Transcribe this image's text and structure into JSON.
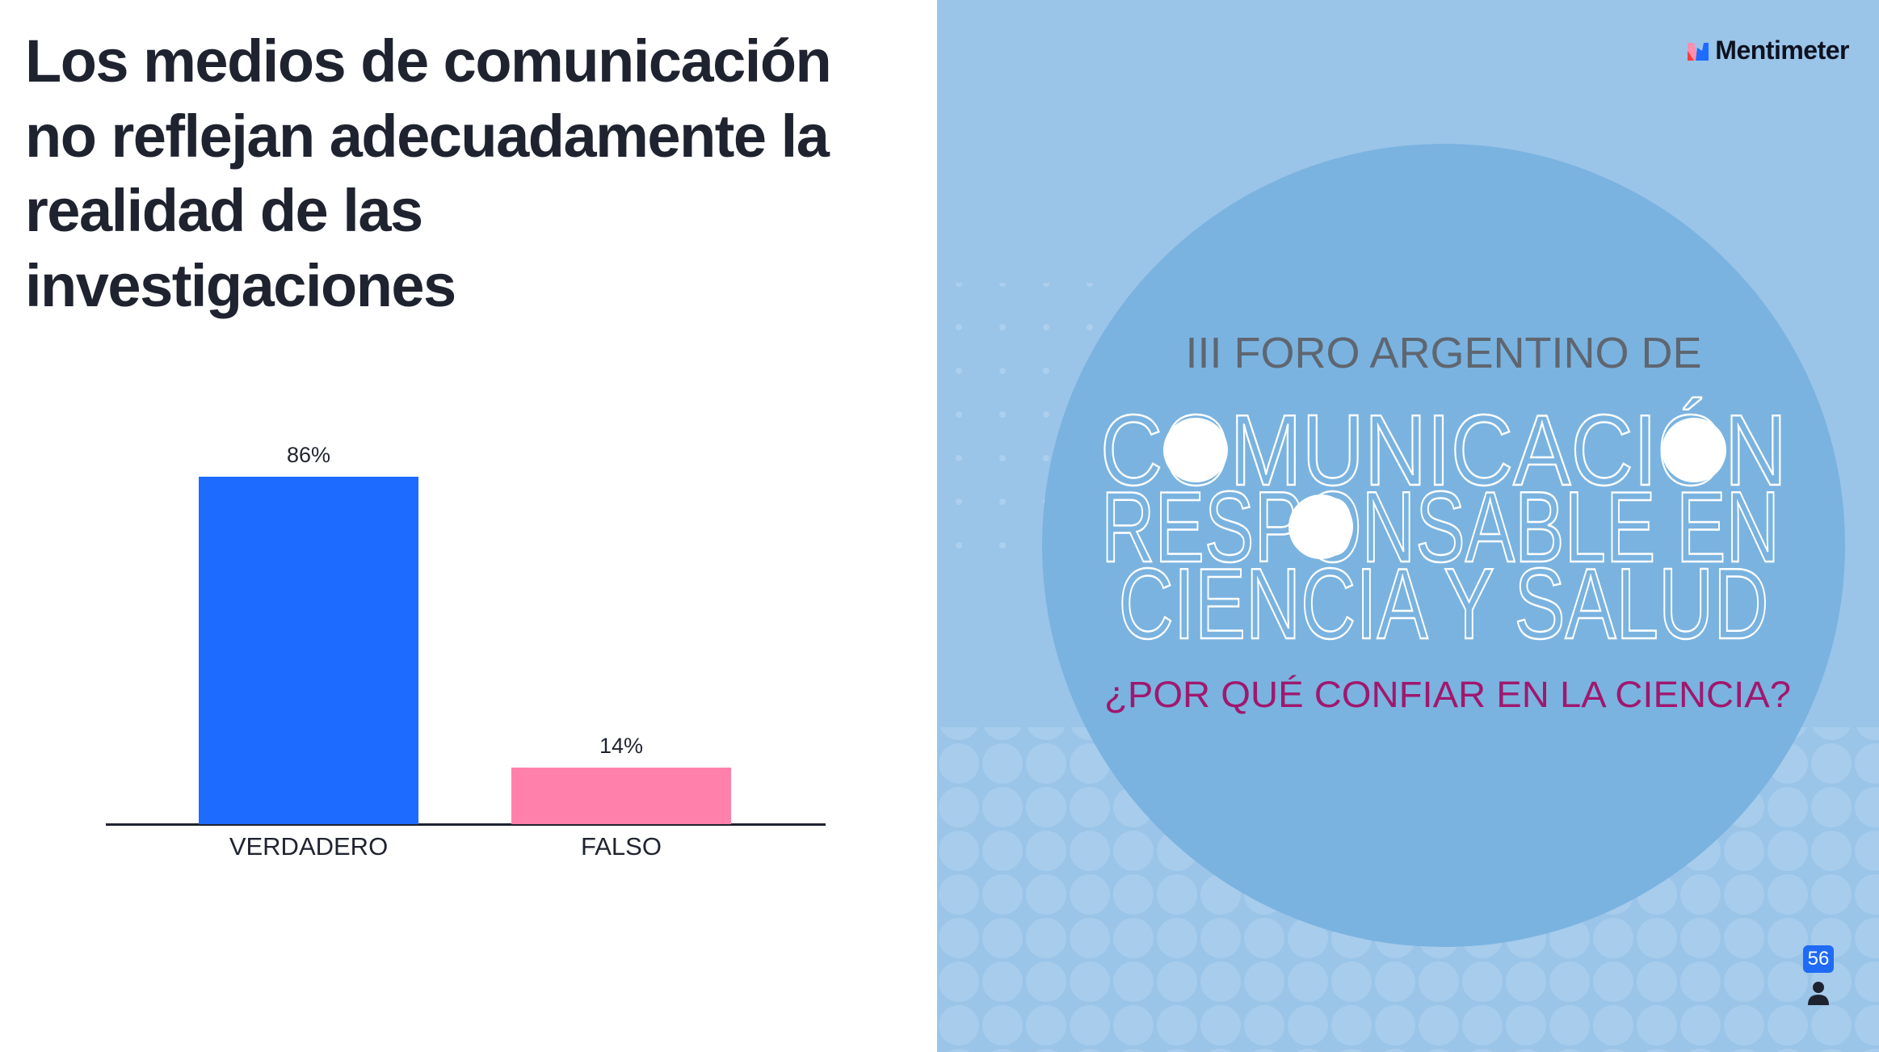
{
  "question": {
    "title": "Los medios de comunicación no reflejan adecuadamente la realidad de las investigaciones"
  },
  "chart_data": {
    "type": "bar",
    "categories": [
      "VERDADERO",
      "FALSO"
    ],
    "values": [
      86,
      14
    ],
    "value_labels": [
      "86%",
      "14%"
    ],
    "colors": [
      "#1e6bff",
      "#ff80ab"
    ],
    "ylim": [
      0,
      100
    ],
    "title": "",
    "xlabel": "",
    "ylabel": ""
  },
  "branding": {
    "logo_text": "Mentimeter"
  },
  "slide_image": {
    "line1": "III FORO ARGENTINO DE",
    "line2": "COMUNICACIÓN",
    "line3": "RESPONSABLE EN",
    "line4": "CIENCIA Y SALUD",
    "line5": "¿POR QUÉ CONFIAR EN LA CIENCIA?"
  },
  "participants": {
    "count": "56",
    "icon": "person-icon"
  }
}
